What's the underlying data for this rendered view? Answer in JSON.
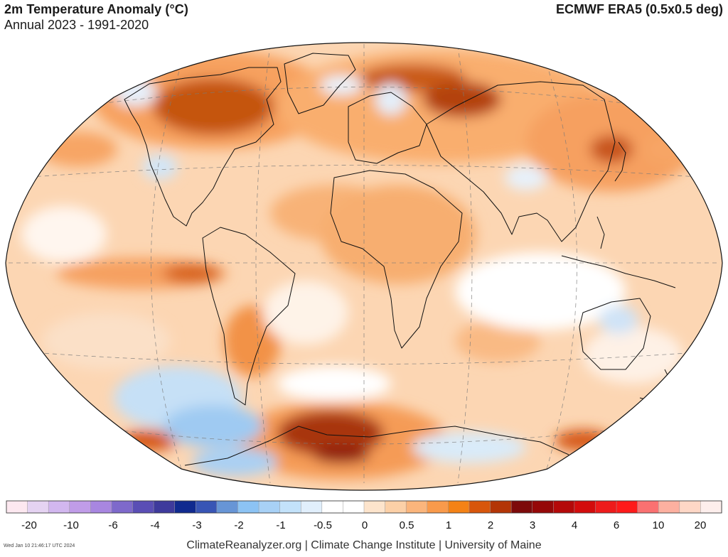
{
  "header": {
    "title": "2m Temperature Anomaly (°C)",
    "subtitle": "Annual 2023 - 1991-2020",
    "source": "ECMWF ERA5 (0.5x0.5 deg)"
  },
  "map": {
    "projection": "Winkel Tripel",
    "variable": "2m temperature anomaly"
  },
  "colorbar": {
    "unit": "°C",
    "colors": [
      "#fde8f0",
      "#e5d3f2",
      "#d2b7ef",
      "#c09ce8",
      "#a886e0",
      "#7e69cb",
      "#5a4eb5",
      "#3e3a9c",
      "#102a8f",
      "#3855b5",
      "#6795d6",
      "#8cc3f4",
      "#a8d1f6",
      "#c3e2fa",
      "#e1effc",
      "#ffffff",
      "#ffffff",
      "#fde4cc",
      "#fcd0a7",
      "#fbb57c",
      "#f99a4b",
      "#f48216",
      "#d8560b",
      "#b33506",
      "#7d0a0a",
      "#950808",
      "#b40909",
      "#d30c0c",
      "#ee1b1b",
      "#ff1a1a",
      "#fa7171",
      "#fdb0a0",
      "#fed7c6",
      "#fdeeec"
    ],
    "tick_labels": [
      "-20",
      "-10",
      "-6",
      "-4",
      "-3",
      "-2",
      "-1",
      "-0.5",
      "0",
      "0.5",
      "1",
      "2",
      "3",
      "4",
      "6",
      "10",
      "20"
    ]
  },
  "footer": {
    "credit": "ClimateReanalyzer.org | Climate Change Institute | University of Maine",
    "timestamp": "Wed Jan 10 21:46:17 UTC 2024"
  }
}
